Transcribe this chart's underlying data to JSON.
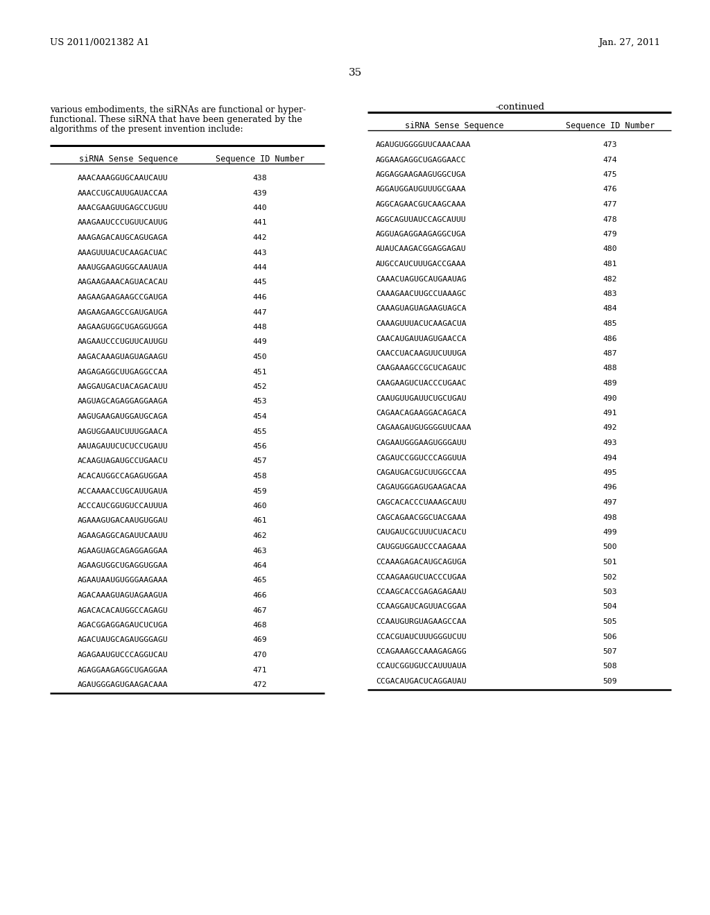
{
  "header_left": "US 2011/0021382 A1",
  "header_right": "Jan. 27, 2011",
  "page_number": "35",
  "body_text_line1": "various embodiments, the siRNAs are functional or hyper-",
  "body_text_line2": "functional. These siRNA that have been generated by the",
  "body_text_line3": "algorithms of the present invention include:",
  "continued_label": "-continued",
  "left_table": {
    "col1_header": "siRNA Sense Sequence",
    "col2_header": "Sequence ID Number",
    "rows": [
      [
        "AAACAAAGGUGCAAUCAUU",
        "438"
      ],
      [
        "AAACCUGCAUUGAUACCAA",
        "439"
      ],
      [
        "AAACGAAGUUGAGCCUGUU",
        "440"
      ],
      [
        "AAAGAAUCCCUGUUCAUUG",
        "441"
      ],
      [
        "AAAGAGACAUGCAGUGAGA",
        "442"
      ],
      [
        "AAAGUUUACUCAAGACUAC",
        "443"
      ],
      [
        "AAAUGGAAGUGGCAAUAUA",
        "444"
      ],
      [
        "AAGAAGAAACAGUACACAU",
        "445"
      ],
      [
        "AAGAAGAAGAAGCCGAUGA",
        "446"
      ],
      [
        "AAGAAGAAGCCGAUGAUGA",
        "447"
      ],
      [
        "AAGAAGUGGCUGAGGUGGA",
        "448"
      ],
      [
        "AAGAAUCCCUGUUCAUUGU",
        "449"
      ],
      [
        "AAGACAAAGUAGUAGAAGU",
        "450"
      ],
      [
        "AAGAGAGGCUUGAGGCCAA",
        "451"
      ],
      [
        "AAGGAUGACUACAGACAUU",
        "452"
      ],
      [
        "AAGUAGCAGAGGAGGAAGA",
        "453"
      ],
      [
        "AAGUGAAGAUGGAUGCAGA",
        "454"
      ],
      [
        "AAGUGGAAUCUUUGGAACA",
        "455"
      ],
      [
        "AAUAGAUUCUCUCCUGAUU",
        "456"
      ],
      [
        "ACAAGUAGAUGCCUGAACU",
        "457"
      ],
      [
        "ACACAUGGCCAGAGUGGAA",
        "458"
      ],
      [
        "ACCAAAACCUGCAUUGAUA",
        "459"
      ],
      [
        "ACCCAUCGGUGUCCAUUUA",
        "460"
      ],
      [
        "AGAAAGUGACAAUGUGGAU",
        "461"
      ],
      [
        "AGAAGAGGCAGAUUCAAUU",
        "462"
      ],
      [
        "AGAAGUAGCAGAGGAGGAA",
        "463"
      ],
      [
        "AGAAGUGGCUGAGGUGGAA",
        "464"
      ],
      [
        "AGAAUAAUGUGGGAAGAAA",
        "465"
      ],
      [
        "AGACAAAGUAGUAGAAGUA",
        "466"
      ],
      [
        "AGACACACAUGGCCAGAGU",
        "467"
      ],
      [
        "AGACGGAGGAGAUCUCUGA",
        "468"
      ],
      [
        "AGACUAUGCAGAUGGGAGU",
        "469"
      ],
      [
        "AGAGAAUGUCCCAGGUCAU",
        "470"
      ],
      [
        "AGAGGAAGAGGCUGAGGAA",
        "471"
      ],
      [
        "AGAUGGGAGUGAAGACAAA",
        "472"
      ]
    ]
  },
  "right_table": {
    "col1_header": "siRNA Sense Sequence",
    "col2_header": "Sequence ID Number",
    "rows": [
      [
        "AGAUGUGGGGUUCAAACAAA",
        "473"
      ],
      [
        "AGGAAGAGGCUGAGGAACC",
        "474"
      ],
      [
        "AGGAGGAAGAAGUGGCUGA",
        "475"
      ],
      [
        "AGGAUGGAUGUUUGCGAAA",
        "476"
      ],
      [
        "AGGCAGAACGUCAAGCAAA",
        "477"
      ],
      [
        "AGGCAGUUAUCCAGCAUUU",
        "478"
      ],
      [
        "AGGUAGAGGAAGAGGCUGA",
        "479"
      ],
      [
        "AUAUCAAGACGGAGGAGAU",
        "480"
      ],
      [
        "AUGCCAUCUUUGACCGAAA",
        "481"
      ],
      [
        "CAAACUAGUGCAUGAAUAG",
        "482"
      ],
      [
        "CAAAGAACUUGCCUAAAGC",
        "483"
      ],
      [
        "CAAAGUAGUAGAAGUAGCA",
        "484"
      ],
      [
        "CAAAGUUUACUCAAGACUA",
        "485"
      ],
      [
        "CAACAUGAUUAGUGAACCA",
        "486"
      ],
      [
        "CAACCUACAAGUUCUUUGA",
        "487"
      ],
      [
        "CAAGAAAGCCGCUCAGAUC",
        "488"
      ],
      [
        "CAAGAAGUCUACCCUGAAC",
        "489"
      ],
      [
        "CAAUGUUGAUUCUGCUGAU",
        "490"
      ],
      [
        "CAGAACAGAAGGACAGACA",
        "491"
      ],
      [
        "CAGAAGAUGUGGGGUUCAAA",
        "492"
      ],
      [
        "CAGAAUGGGAAGUGGGAUU",
        "493"
      ],
      [
        "CAGAUCCGGUCCCAGGUUA",
        "494"
      ],
      [
        "CAGAUGACGUCUUGGCCAA",
        "495"
      ],
      [
        "CAGAUGGGAGUGAAGACAA",
        "496"
      ],
      [
        "CAGCACACCCUAAAGCAUU",
        "497"
      ],
      [
        "CAGCAGAACGGCUACGAAA",
        "498"
      ],
      [
        "CAUGAUCGCUUUCUACACU",
        "499"
      ],
      [
        "CAUGGUGGAUCCCAAGAAA",
        "500"
      ],
      [
        "CCAAAGAGACAUGCAGUGA",
        "501"
      ],
      [
        "CCAAGAAGUCUACCCUGAA",
        "502"
      ],
      [
        "CCAAGCACCGAGAGAGAAU",
        "503"
      ],
      [
        "CCAAGGAUCAGUUACGGAA",
        "504"
      ],
      [
        "CCAAUGURGUAGAAGCCAA",
        "505"
      ],
      [
        "CCACGUAUCUUUGGGUCUU",
        "506"
      ],
      [
        "CCAGAAAGCCAAAGAGAGG",
        "507"
      ],
      [
        "CCAUCGGUGUCCAUUUAUA",
        "508"
      ],
      [
        "CCGACAUGACUCAGGAUAU",
        "509"
      ]
    ]
  }
}
